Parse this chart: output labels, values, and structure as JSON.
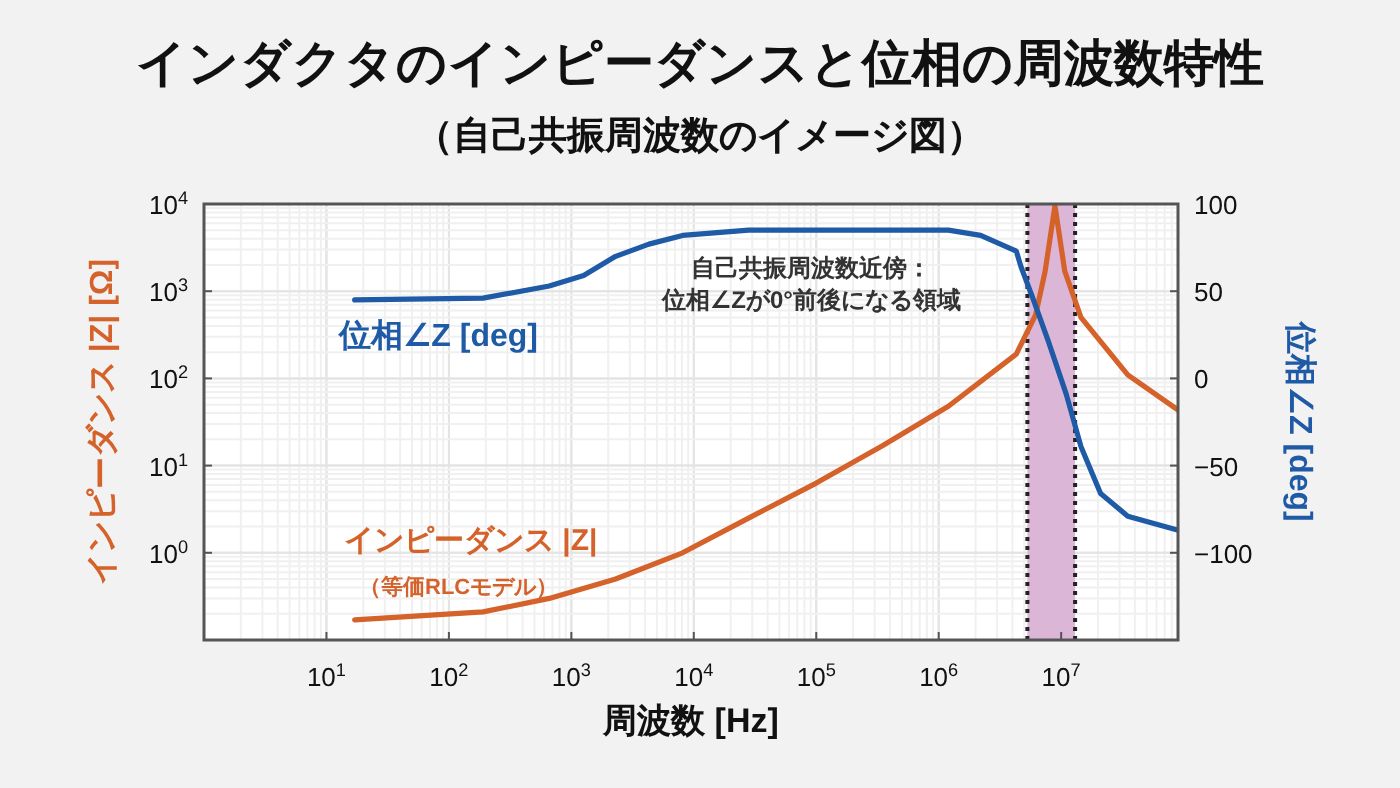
{
  "chart_data": {
    "type": "line",
    "title": "インダクタのインピーダンスと位相の周波数特性",
    "subtitle": "（自己共振周波数のイメージ図）",
    "xlabel": "周波数 [Hz]",
    "ylabel": "インピーダンス |Z| [Ω]",
    "y2label": "位相∠Z [deg]",
    "log": "xy",
    "grid": true,
    "line_style": "solid",
    "marker": "none",
    "xlim": [
      1,
      90000000
    ],
    "xticks": [
      {
        "value": 10,
        "label": "10$^{1}$"
      },
      {
        "value": 100,
        "label": "10$^{2}$"
      },
      {
        "value": 1000,
        "label": "10$^{3}$"
      },
      {
        "value": 10000,
        "label": "10$^{4}$"
      },
      {
        "value": 100000,
        "label": "10$^{5}$"
      },
      {
        "value": 1000000,
        "label": "10$^{6}$"
      },
      {
        "value": 10000000,
        "label": "10$^{7}$"
      }
    ],
    "ylim": [
      0.1,
      10000
    ],
    "yticks": [
      {
        "value": 1,
        "label": "10$^{0}$"
      },
      {
        "value": 10,
        "label": "10$^{1}$"
      },
      {
        "value": 100,
        "label": "10$^{2}$"
      },
      {
        "value": 1000,
        "label": "10$^{3}$"
      },
      {
        "value": 10000,
        "label": "10$^{4}$"
      }
    ],
    "y2lim": [
      -150,
      100
    ],
    "y2ticks": [
      -100,
      -50,
      0,
      50,
      100
    ],
    "series": [
      {
        "name": "インピーダンス |Z|",
        "color": "#d4622a",
        "x": [
          17,
          190,
          660,
          2300,
          8100,
          28000,
          100000,
          350000,
          1200000,
          4300000,
          6200000,
          7400000,
          8900000,
          10700000,
          14500000,
          35000000,
          89000000
        ],
        "values": [
          0.17,
          0.21,
          0.3,
          0.5,
          1,
          2.5,
          6.3,
          17,
          48,
          190,
          540,
          1700,
          9500,
          1700,
          500,
          110,
          44
        ]
      },
      {
        "name": "位相∠Z [deg]",
        "color": "#1f5aa6",
        "axis": "y2",
        "x": [
          17,
          190,
          660,
          1260,
          2300,
          4300,
          8100,
          28000,
          1200000,
          2200000,
          4300000,
          4700000,
          5800000,
          7800000,
          11000000,
          14500000,
          21000000,
          35000000,
          89000000
        ],
        "values": [
          45,
          46,
          53,
          59,
          70,
          77,
          82,
          85,
          85,
          82,
          73,
          64,
          47,
          22,
          -9,
          -39,
          -66,
          -79,
          -87
        ]
      }
    ],
    "bands": [
      {
        "axis": "x",
        "from": 5300000,
        "to": 13000000,
        "color": "#dbb6d6"
      }
    ],
    "ref_lines": [
      {
        "axis": "x",
        "value": 5300000,
        "color": "#222222",
        "line_style": "dotted"
      },
      {
        "axis": "x",
        "value": 13000000,
        "color": "#222222",
        "line_style": "dotted"
      }
    ],
    "annotations": [
      "自己共振周波数近傍：",
      "位相∠Zが0°前後になる領域",
      "（等価RLCモデル）"
    ]
  }
}
